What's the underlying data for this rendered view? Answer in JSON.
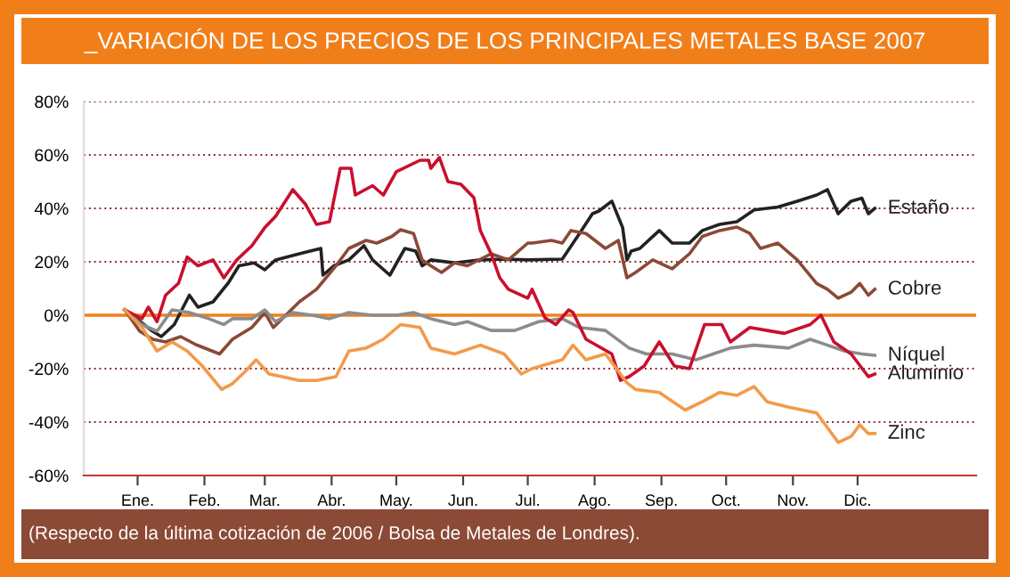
{
  "chart_data": {
    "type": "line",
    "title": "_VARIACIÓN DE LOS PRECIOS DE LOS PRINCIPALES METALES BASE 2007",
    "annotations": [
      "(Respecto de la última cotización de 2006 / Bolsa de Metales de Londres)."
    ],
    "xlim": [
      "2006-12-21",
      "2008-02-08"
    ],
    "xticks": [
      {
        "value": "2007-01-15",
        "label": "Ene."
      },
      {
        "value": "2007-02-15",
        "label": "Feb."
      },
      {
        "value": "2007-03-15",
        "label": "Mar."
      },
      {
        "value": "2007-04-15",
        "label": "Abr."
      },
      {
        "value": "2007-05-15",
        "label": "May."
      },
      {
        "value": "2007-06-15",
        "label": "Jun."
      },
      {
        "value": "2007-07-15",
        "label": "Jul."
      },
      {
        "value": "2007-08-15",
        "label": "Ago."
      },
      {
        "value": "2007-09-15",
        "label": "Sep."
      },
      {
        "value": "2007-10-15",
        "label": "Oct."
      },
      {
        "value": "2007-11-15",
        "label": "Nov."
      },
      {
        "value": "2007-12-15",
        "label": "Dic."
      }
    ],
    "ylim": [
      -60,
      80
    ],
    "yticks": [
      {
        "value": -60,
        "label": "-60%"
      },
      {
        "value": -40,
        "label": "-40%"
      },
      {
        "value": -20,
        "label": "-20%"
      },
      {
        "value": 0,
        "label": "0%"
      },
      {
        "value": 20,
        "label": "20%"
      },
      {
        "value": 40,
        "label": "40%"
      },
      {
        "value": 60,
        "label": "60%"
      },
      {
        "value": 80,
        "label": "80%"
      }
    ],
    "grid": "y",
    "legend": false,
    "marker": "none",
    "line_style": "solid",
    "ref_lines": [
      {
        "axis": "y",
        "value": 0,
        "label": null,
        "color": "#f07f1a"
      }
    ],
    "series": [
      {
        "name": "Estaño",
        "color": "#222222",
        "x": [
          "2007-01-09",
          "2007-01-22",
          "2007-01-26",
          "2007-02-01",
          "2007-02-08",
          "2007-02-12",
          "2007-02-19",
          "2007-02-26",
          "2007-03-03",
          "2007-03-10",
          "2007-03-15",
          "2007-03-20",
          "2007-03-31",
          "2007-04-10",
          "2007-04-11",
          "2007-04-16",
          "2007-04-23",
          "2007-04-30",
          "2007-05-04",
          "2007-05-12",
          "2007-05-19",
          "2007-05-24",
          "2007-05-27",
          "2007-05-31",
          "2007-06-11",
          "2007-06-23",
          "2007-07-04",
          "2007-07-15",
          "2007-07-31",
          "2007-08-08",
          "2007-08-14",
          "2007-08-17",
          "2007-08-23",
          "2007-08-28",
          "2007-08-30",
          "2007-09-01",
          "2007-09-05",
          "2007-09-14",
          "2007-09-20",
          "2007-09-28",
          "2007-10-04",
          "2007-10-12",
          "2007-10-20",
          "2007-10-28",
          "2007-11-08",
          "2007-11-17",
          "2007-11-26",
          "2007-12-01",
          "2007-12-06",
          "2007-12-12",
          "2007-12-17",
          "2007-12-20",
          "2007-12-23"
        ],
        "values": [
          2,
          -6,
          -8,
          -3.5,
          7.5,
          3,
          5,
          12,
          18.5,
          19.6,
          17,
          20.7,
          23,
          25,
          15,
          18.5,
          20.7,
          26,
          20.7,
          15,
          25,
          24,
          18.5,
          20.7,
          19.6,
          20.7,
          21,
          20.7,
          21,
          30.6,
          38,
          39,
          42.7,
          32.8,
          20.7,
          24,
          25,
          31.7,
          27,
          27,
          31.7,
          34,
          35,
          39.4,
          40.5,
          42.7,
          45,
          47,
          38,
          42.7,
          43.8,
          38,
          40
        ]
      },
      {
        "name": "Cobre",
        "color": "#8b4a36",
        "x": [
          "2007-01-09",
          "2007-01-16",
          "2007-01-22",
          "2007-01-28",
          "2007-02-04",
          "2007-02-11",
          "2007-02-22",
          "2007-02-28",
          "2007-03-09",
          "2007-03-15",
          "2007-03-19",
          "2007-03-26",
          "2007-03-31",
          "2007-04-08",
          "2007-04-17",
          "2007-04-23",
          "2007-05-01",
          "2007-05-06",
          "2007-05-13",
          "2007-05-17",
          "2007-05-23",
          "2007-05-27",
          "2007-05-31",
          "2007-06-05",
          "2007-06-11",
          "2007-06-17",
          "2007-06-28",
          "2007-07-06",
          "2007-07-15",
          "2007-07-17",
          "2007-07-26",
          "2007-07-31",
          "2007-08-04",
          "2007-08-11",
          "2007-08-20",
          "2007-08-26",
          "2007-08-30",
          "2007-09-03",
          "2007-09-11",
          "2007-09-20",
          "2007-09-28",
          "2007-10-04",
          "2007-10-12",
          "2007-10-20",
          "2007-10-26",
          "2007-10-31",
          "2007-11-08",
          "2007-11-17",
          "2007-11-26",
          "2007-12-01",
          "2007-12-06",
          "2007-12-12",
          "2007-12-16",
          "2007-12-20",
          "2007-12-23"
        ],
        "values": [
          2,
          -6,
          -9,
          -10,
          -8,
          -11,
          -14.5,
          -9,
          -4.6,
          1,
          -4.6,
          1,
          5,
          9.7,
          18.5,
          25,
          28,
          27,
          29.5,
          32,
          30.6,
          20.7,
          18.5,
          16,
          19.6,
          18.5,
          23,
          20.7,
          27,
          27,
          28,
          27,
          31.7,
          30.6,
          25,
          28,
          14,
          16,
          20.7,
          17.4,
          23,
          29.5,
          31.7,
          33,
          30.6,
          25,
          27,
          20.7,
          11.9,
          9.7,
          6.4,
          8.6,
          11.9,
          7.5,
          9.7
        ]
      },
      {
        "name": "Níquel",
        "color": "#8c8c8c",
        "x": [
          "2007-01-09",
          "2007-01-17",
          "2007-01-24",
          "2007-01-31",
          "2007-02-08",
          "2007-02-17",
          "2007-02-24",
          "2007-02-28",
          "2007-03-09",
          "2007-03-15",
          "2007-03-20",
          "2007-03-28",
          "2007-04-06",
          "2007-04-14",
          "2007-04-23",
          "2007-05-04",
          "2007-05-15",
          "2007-05-23",
          "2007-05-31",
          "2007-06-11",
          "2007-06-17",
          "2007-06-28",
          "2007-07-09",
          "2007-07-20",
          "2007-07-31",
          "2007-08-08",
          "2007-08-20",
          "2007-08-31",
          "2007-09-08",
          "2007-09-20",
          "2007-10-01",
          "2007-10-09",
          "2007-10-17",
          "2007-10-28",
          "2007-11-13",
          "2007-11-23",
          "2007-12-01",
          "2007-12-09",
          "2007-12-17",
          "2007-12-23"
        ],
        "values": [
          2,
          -3.5,
          -6,
          2,
          1,
          -1.3,
          -3.5,
          -1.3,
          -1.3,
          2,
          -2.4,
          1,
          0,
          -1.3,
          1,
          0,
          0,
          1,
          -1.3,
          -3.5,
          -2.4,
          -5.7,
          -5.7,
          -2.4,
          -1.3,
          -4.6,
          -5.7,
          -12.3,
          -14.5,
          -14.5,
          -16.7,
          -14.5,
          -12.3,
          -11.2,
          -12.3,
          -9,
          -11.2,
          -13.4,
          -14.5,
          -15
        ]
      },
      {
        "name": "Aluminio",
        "color": "#c8102e",
        "x": [
          "2007-01-09",
          "2007-01-17",
          "2007-01-20",
          "2007-01-24",
          "2007-01-28",
          "2007-02-03",
          "2007-02-07",
          "2007-02-12",
          "2007-02-19",
          "2007-02-24",
          "2007-03-02",
          "2007-03-09",
          "2007-03-15",
          "2007-03-20",
          "2007-03-28",
          "2007-04-03",
          "2007-04-08",
          "2007-04-14",
          "2007-04-19",
          "2007-04-24",
          "2007-04-26",
          "2007-05-04",
          "2007-05-09",
          "2007-05-15",
          "2007-05-26",
          "2007-05-30",
          "2007-05-31",
          "2007-06-04",
          "2007-06-08",
          "2007-06-14",
          "2007-06-20",
          "2007-06-23",
          "2007-06-28",
          "2007-07-02",
          "2007-07-06",
          "2007-07-15",
          "2007-07-17",
          "2007-07-23",
          "2007-07-28",
          "2007-08-03",
          "2007-08-05",
          "2007-08-11",
          "2007-08-23",
          "2007-08-27",
          "2007-08-31",
          "2007-09-07",
          "2007-09-14",
          "2007-09-21",
          "2007-09-28",
          "2007-10-05",
          "2007-10-13",
          "2007-10-17",
          "2007-10-26",
          "2007-11-03",
          "2007-11-11",
          "2007-11-23",
          "2007-11-28",
          "2007-12-04",
          "2007-12-12",
          "2007-12-20",
          "2007-12-23"
        ],
        "values": [
          2,
          -1.3,
          3,
          -2.4,
          7.5,
          12,
          21.8,
          18.5,
          20.7,
          14,
          20.7,
          26,
          32.8,
          37,
          47,
          41.4,
          34,
          35,
          55,
          55,
          45,
          48.5,
          45,
          53.7,
          58,
          58,
          55,
          59,
          50,
          49,
          44,
          31.7,
          23,
          14,
          9.7,
          6.4,
          9.7,
          -1,
          -3.5,
          2,
          1,
          -9,
          -14.5,
          -24.4,
          -23,
          -19,
          -10,
          -19,
          -20,
          -3.5,
          -3.5,
          -10,
          -4.6,
          -5.7,
          -6.8,
          -3.5,
          0,
          -10,
          -14.5,
          -23,
          -22
        ]
      },
      {
        "name": "Zinc",
        "color": "#f39a4a",
        "x": [
          "2007-01-09",
          "2007-01-17",
          "2007-01-24",
          "2007-01-31",
          "2007-02-07",
          "2007-02-14",
          "2007-02-23",
          "2007-02-28",
          "2007-03-06",
          "2007-03-11",
          "2007-03-17",
          "2007-03-23",
          "2007-03-31",
          "2007-04-08",
          "2007-04-17",
          "2007-04-23",
          "2007-05-01",
          "2007-05-09",
          "2007-05-17",
          "2007-05-26",
          "2007-05-31",
          "2007-06-11",
          "2007-06-23",
          "2007-07-04",
          "2007-07-12",
          "2007-07-17",
          "2007-07-26",
          "2007-07-31",
          "2007-08-05",
          "2007-08-11",
          "2007-08-20",
          "2007-08-30",
          "2007-09-03",
          "2007-09-14",
          "2007-09-26",
          "2007-10-04",
          "2007-10-12",
          "2007-10-20",
          "2007-10-28",
          "2007-11-03",
          "2007-11-13",
          "2007-11-26",
          "2007-12-06",
          "2007-12-12",
          "2007-12-16",
          "2007-12-20",
          "2007-12-23"
        ],
        "values": [
          2,
          -4.6,
          -13.4,
          -10,
          -13.4,
          -19,
          -27.8,
          -25.6,
          -21,
          -16.7,
          -22,
          -23,
          -24.4,
          -24.4,
          -23,
          -13.4,
          -12.3,
          -9,
          -3.5,
          -4.6,
          -12.3,
          -14.5,
          -11.2,
          -14.5,
          -22,
          -20,
          -17.8,
          -16.7,
          -11.2,
          -16.7,
          -14.5,
          -25.3,
          -27.8,
          -28.9,
          -35.5,
          -32.4,
          -28.9,
          -30,
          -26.7,
          -32.4,
          -34.4,
          -36.6,
          -47.6,
          -45.4,
          -41,
          -44.3,
          -44.3
        ]
      }
    ]
  }
}
